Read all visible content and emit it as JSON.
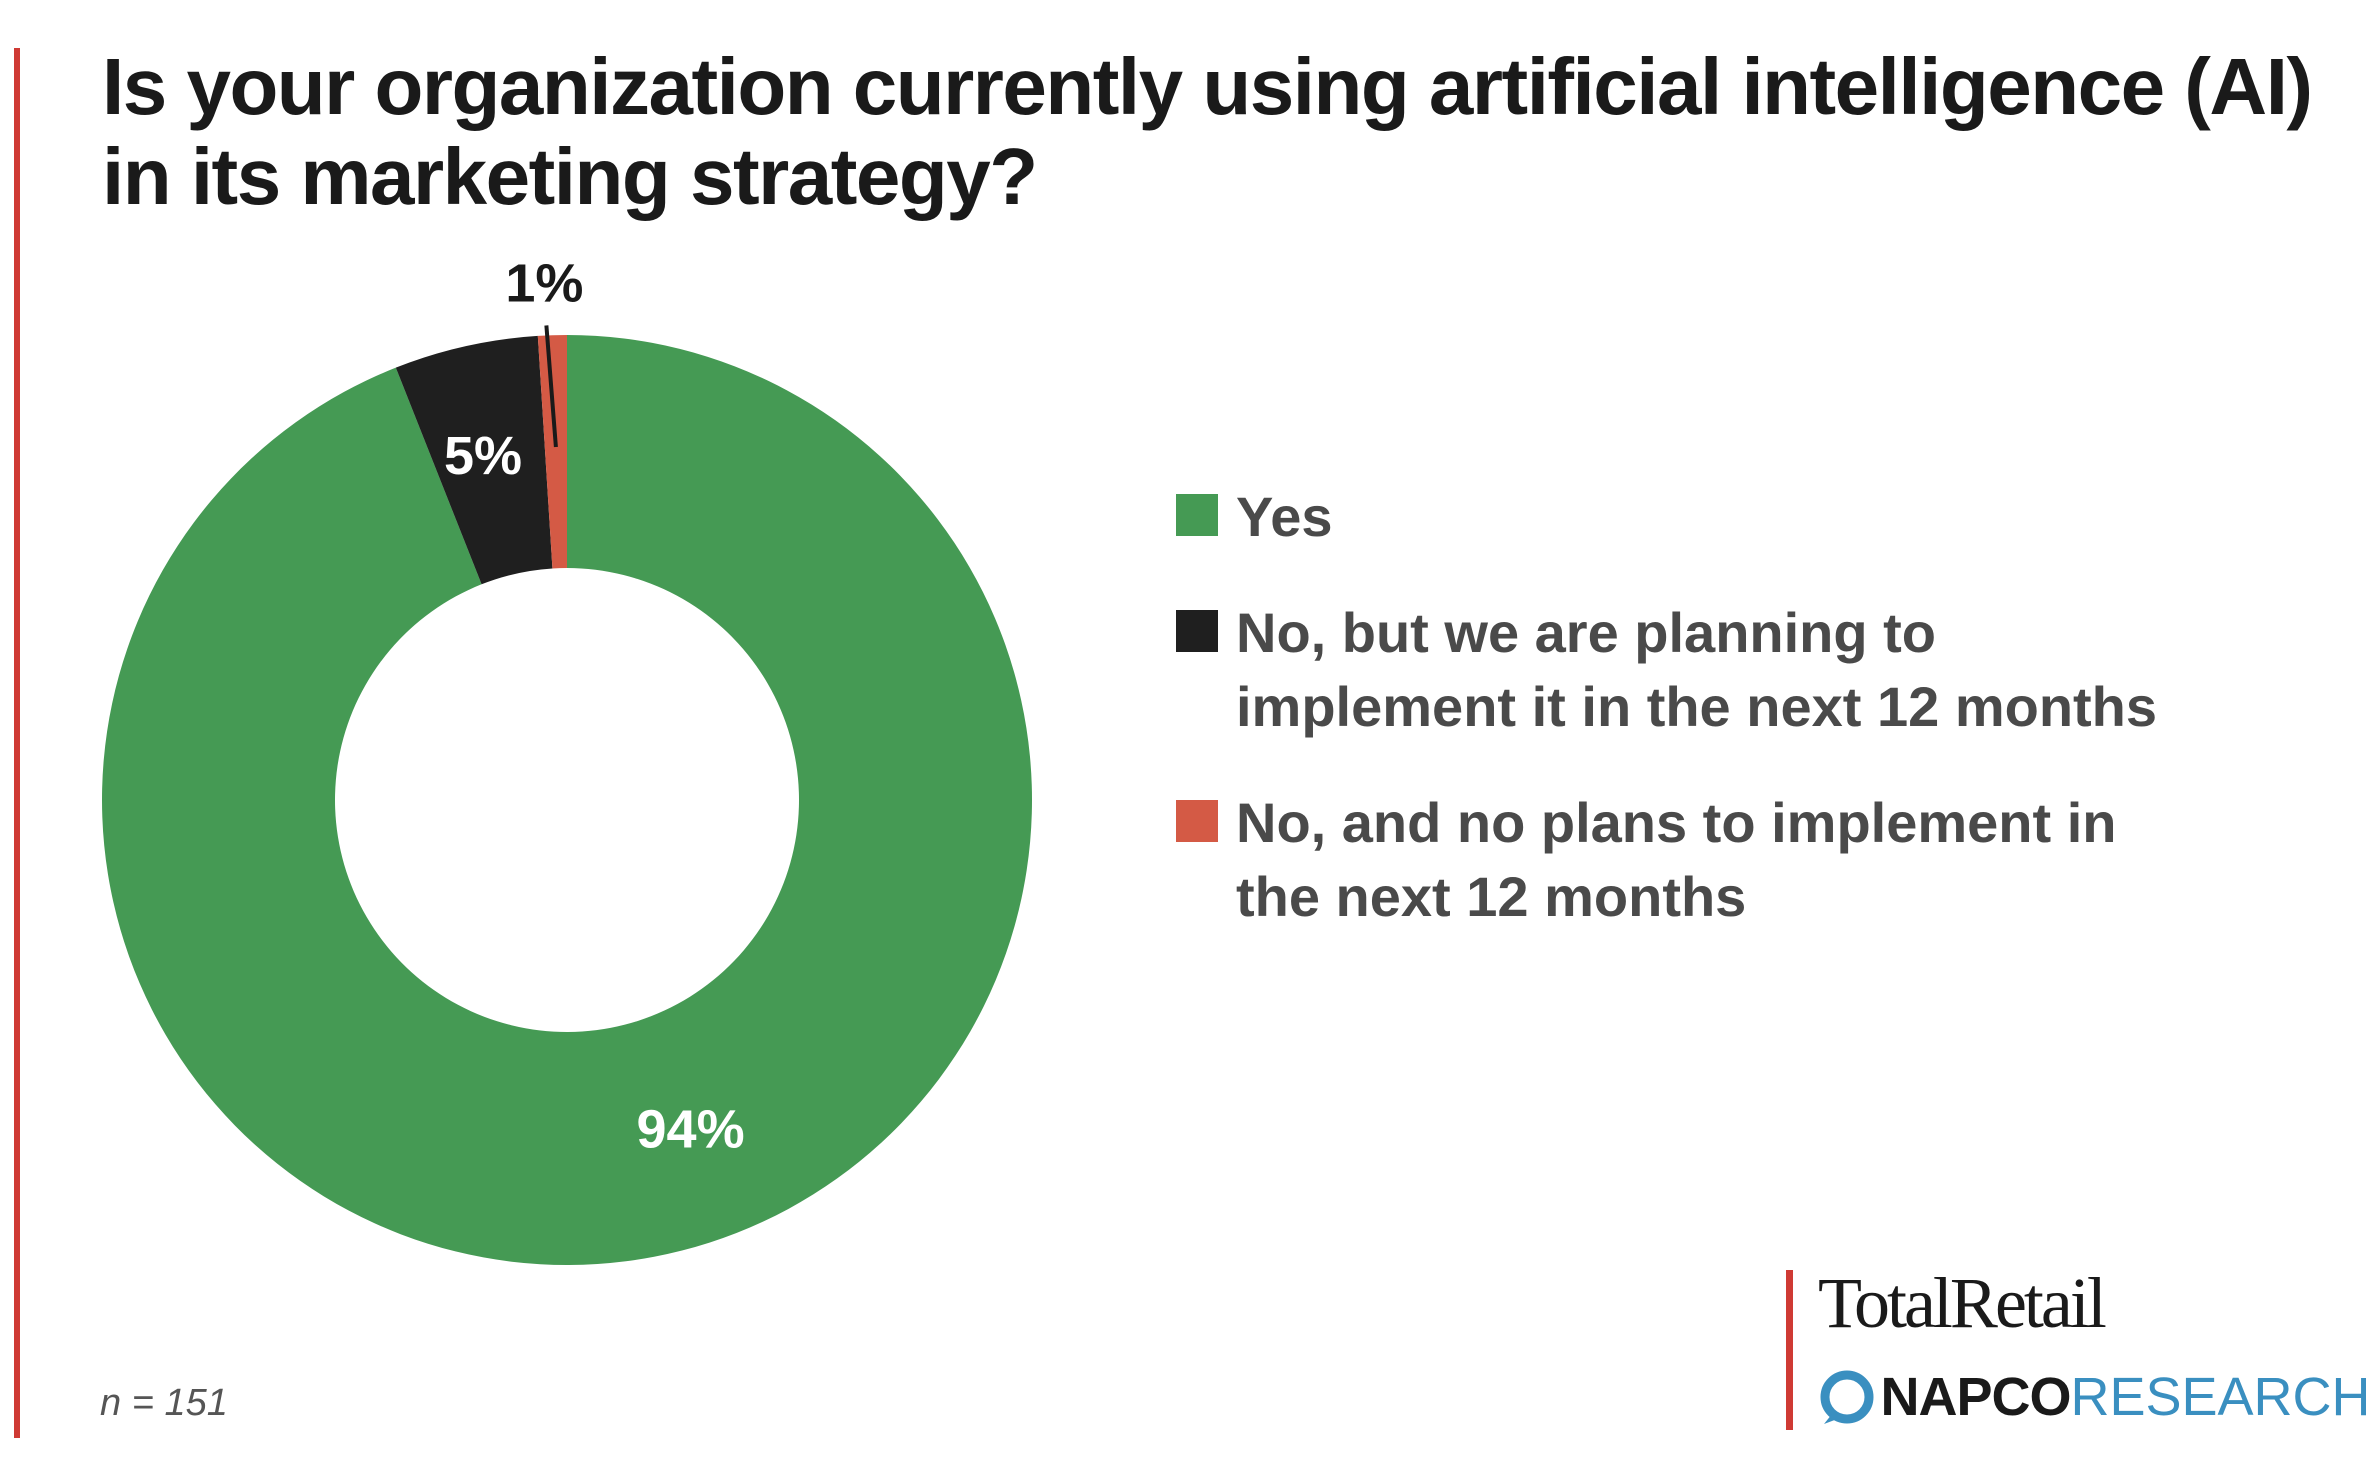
{
  "title": "Is your organization currently using artificial intelligence (AI) in its marketing strategy?",
  "sample_size": "n = 151",
  "chart_data": {
    "type": "pie",
    "style": "donut",
    "title": "Is your organization currently using artificial intelligence (AI) in its marketing strategy?",
    "categories": [
      "Yes",
      "No, but we are planning to implement it in the next 12 months",
      "No, and no plans to implement in the next 12 months"
    ],
    "values": [
      94,
      5,
      1
    ],
    "labels": [
      "94%",
      "5%",
      "1%"
    ],
    "colors": [
      "#459a54",
      "#1f1f1f",
      "#d45a45"
    ],
    "legend_position": "right"
  },
  "logos": {
    "total_retail": "TotalRetail",
    "napco": "NAPCO",
    "research": "RESEARCH"
  },
  "colors": {
    "accent": "#cf3a34",
    "title_text": "#1a1a1a",
    "legend_text": "#4a4a4a",
    "napco_blue": "#3a8fc0"
  }
}
